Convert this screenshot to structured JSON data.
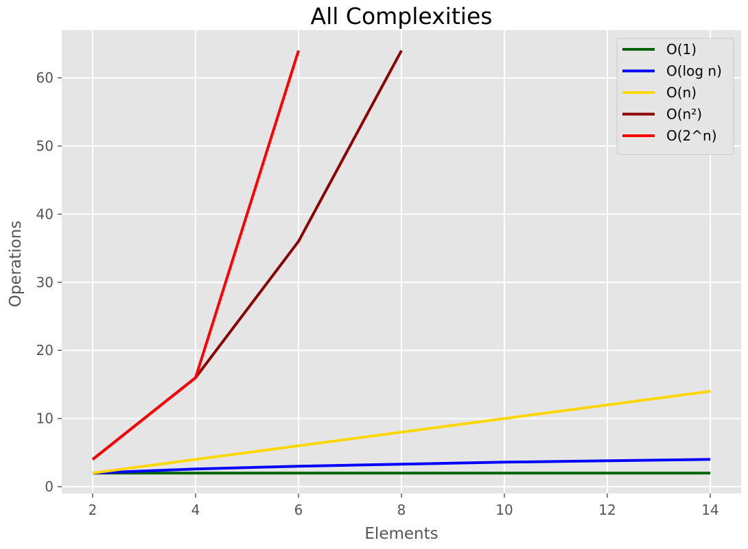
{
  "chart_data": {
    "type": "line",
    "title": "All Complexities",
    "xlabel": "Elements",
    "ylabel": "Operations",
    "xlim": [
      1.4,
      14.6
    ],
    "ylim": [
      -1.0,
      67.0
    ],
    "xticks": [
      2,
      4,
      6,
      8,
      10,
      12,
      14
    ],
    "yticks": [
      0,
      10,
      20,
      30,
      40,
      50,
      60
    ],
    "grid": true,
    "legend_position": "top-right",
    "background": "#e5e5e5",
    "series": [
      {
        "name": "O(1)",
        "color": "#006400",
        "x": [
          2,
          4,
          6,
          8,
          10,
          12,
          14
        ],
        "y": [
          2,
          2,
          2,
          2,
          2,
          2,
          2
        ]
      },
      {
        "name": "O(log n)",
        "color": "#0000ff",
        "x": [
          2,
          4,
          6,
          8,
          10,
          12,
          14
        ],
        "y": [
          2,
          2.6,
          3.0,
          3.3,
          3.6,
          3.8,
          4.0
        ]
      },
      {
        "name": "O(n)",
        "color": "#ffd700",
        "x": [
          2,
          4,
          6,
          8,
          10,
          12,
          14
        ],
        "y": [
          2,
          4,
          6,
          8,
          10,
          12,
          14
        ]
      },
      {
        "name": "O(n²)",
        "color": "#8b0000",
        "x": [
          2,
          4,
          6,
          8
        ],
        "y": [
          4,
          16,
          36,
          64
        ]
      },
      {
        "name": "O(2^n)",
        "color": "#ff0000",
        "x": [
          2,
          4,
          6
        ],
        "y": [
          4,
          16,
          64
        ]
      }
    ]
  }
}
